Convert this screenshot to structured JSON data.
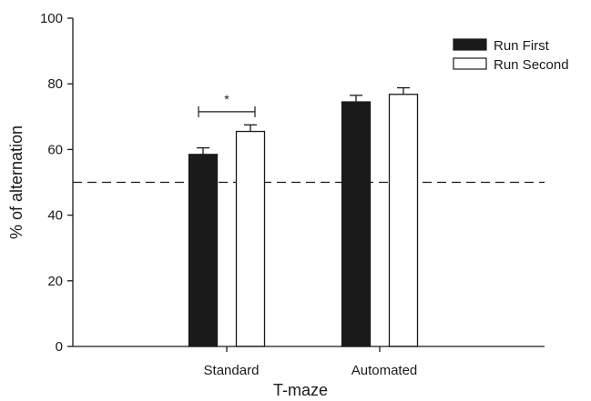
{
  "chart_data": {
    "type": "bar",
    "xlabel": "T-maze",
    "ylabel": "% of alternation",
    "ylim": [
      0,
      100
    ],
    "yticks": [
      0,
      20,
      40,
      60,
      80,
      100
    ],
    "categories": [
      "Standard",
      "Automated"
    ],
    "series": [
      {
        "name": "Run First",
        "values": [
          58.5,
          74.5
        ],
        "errors": [
          2.0,
          2.0
        ],
        "fill": "#1a1a1a"
      },
      {
        "name": "Run Second",
        "values": [
          65.5,
          76.8
        ],
        "errors": [
          2.0,
          2.0
        ],
        "fill": "#ffffff"
      }
    ],
    "reference_line": {
      "value": 50,
      "style": "dashed"
    },
    "significance": {
      "category": "Standard",
      "label": "*"
    },
    "legend_position": "top-right",
    "grid": false
  }
}
